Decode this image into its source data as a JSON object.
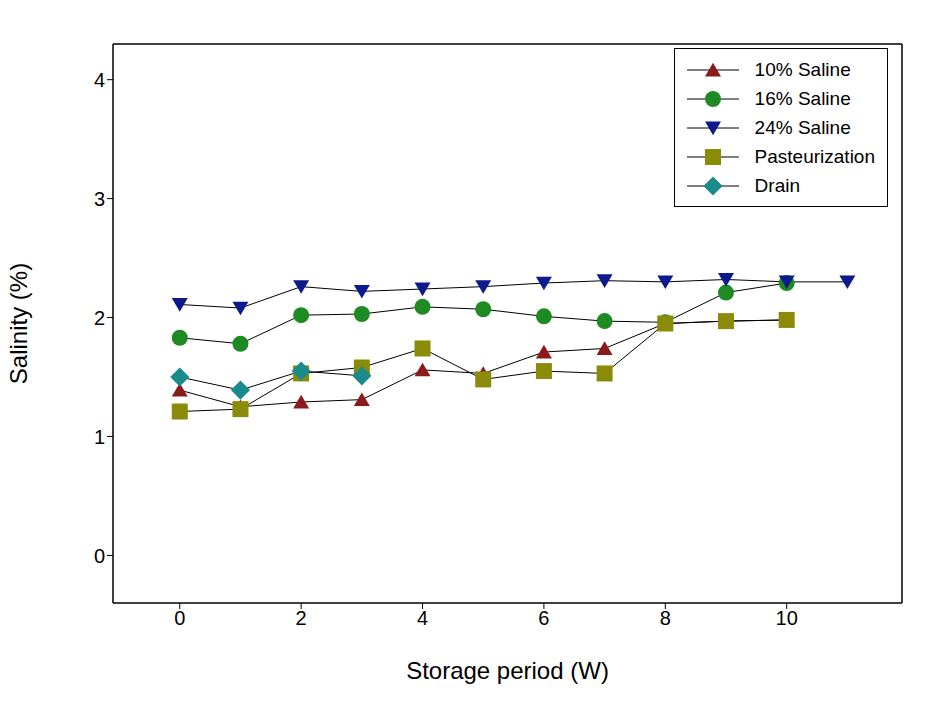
{
  "chart_data": {
    "type": "line",
    "x_label": "Storage period (W)",
    "y_label": "Salinity (%)",
    "x": [
      0,
      1,
      2,
      3,
      4,
      5,
      6,
      7,
      8,
      9,
      10,
      11
    ],
    "xlim": [
      -1.1,
      11.9
    ],
    "xticks": [
      0,
      2,
      4,
      6,
      8,
      10
    ],
    "ylim": [
      -0.4,
      4.3
    ],
    "yticks": [
      0,
      1,
      2,
      3,
      4
    ],
    "grid": false,
    "legend": "upper right",
    "series": [
      {
        "name": "10% Saline",
        "color": "#8b1a1a",
        "marker": "triangle",
        "values": [
          1.39,
          1.25,
          1.29,
          1.31,
          1.56,
          1.53,
          1.71,
          1.74,
          1.95,
          1.97,
          1.98,
          null
        ]
      },
      {
        "name": "16% Saline",
        "color": "#1e8b22",
        "marker": "circle",
        "values": [
          1.83,
          1.78,
          2.02,
          2.03,
          2.09,
          2.07,
          2.01,
          1.97,
          1.96,
          2.21,
          2.29,
          null
        ]
      },
      {
        "name": "24% Saline",
        "color": "#0d1a8c",
        "marker": "triangle-down",
        "values": [
          2.11,
          2.08,
          2.26,
          2.22,
          2.24,
          2.26,
          2.29,
          2.31,
          2.3,
          2.32,
          2.3,
          2.3
        ]
      },
      {
        "name": "Pasteurization",
        "color": "#8b8b0a",
        "marker": "square",
        "values": [
          1.21,
          1.23,
          1.53,
          1.58,
          1.74,
          1.48,
          1.55,
          1.53,
          1.95,
          1.97,
          1.98,
          null
        ]
      },
      {
        "name": "Drain",
        "color": "#1a8b8b",
        "marker": "diamond",
        "values": [
          1.5,
          1.39,
          1.55,
          1.51,
          null,
          null,
          null,
          null,
          null,
          null,
          null,
          null
        ]
      }
    ]
  }
}
